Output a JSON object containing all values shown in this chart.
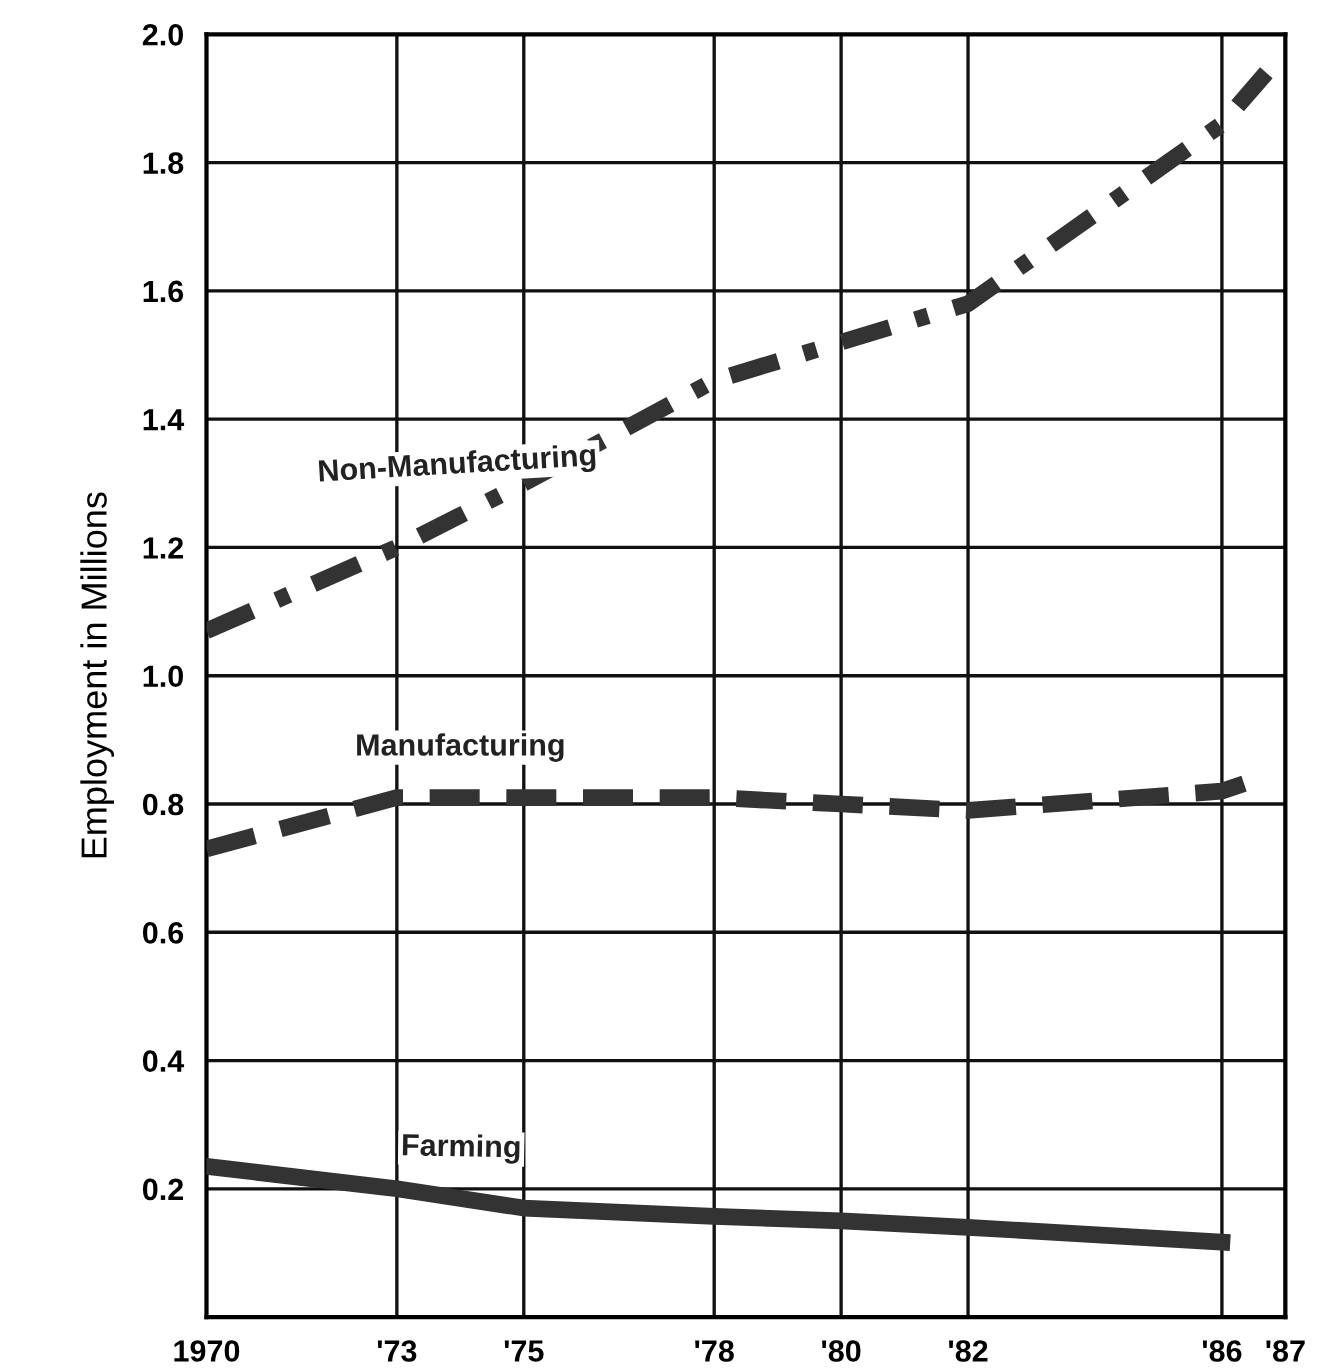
{
  "chart_data": {
    "type": "line",
    "ylabel": "Employment in Millions",
    "xlim": [
      1970,
      1987
    ],
    "xticks": [
      {
        "value": 1970,
        "label": "1970"
      },
      {
        "value": 1973,
        "label": "'73"
      },
      {
        "value": 1975,
        "label": "'75"
      },
      {
        "value": 1978,
        "label": "'78"
      },
      {
        "value": 1980,
        "label": "'80"
      },
      {
        "value": 1982,
        "label": "'82"
      },
      {
        "value": 1986,
        "label": "'86"
      },
      {
        "value": 1987,
        "label": "'87"
      }
    ],
    "ylim": [
      0,
      2.0
    ],
    "yticks": [
      0.2,
      0.4,
      0.6,
      0.8,
      {
        "value": 1.0,
        "label": "1.0"
      },
      1.2,
      1.4,
      1.6,
      1.8,
      {
        "value": 2.0,
        "label": "2.0"
      }
    ],
    "grid": true,
    "legend": false,
    "marker": "none",
    "series": [
      {
        "name": "Non-Manufacturing",
        "color": "#333333",
        "line_style": "dashdot",
        "x": [
          1970,
          1973,
          1975,
          1978,
          1980,
          1982,
          1986,
          1986.7
        ],
        "values": [
          1.07,
          1.2,
          1.3,
          1.46,
          1.52,
          1.58,
          1.86,
          1.94
        ]
      },
      {
        "name": "Manufacturing",
        "color": "#333333",
        "line_style": "dashed",
        "x": [
          1970,
          1973,
          1975,
          1978,
          1980,
          1982,
          1986,
          1986.6
        ],
        "values": [
          0.73,
          0.81,
          0.81,
          0.81,
          0.8,
          0.79,
          0.82,
          0.84
        ]
      },
      {
        "name": "Farming",
        "color": "#333333",
        "line_style": "solid",
        "x": [
          1970,
          1973,
          1975,
          1978,
          1980,
          1982,
          1986
        ],
        "values": [
          0.235,
          0.2,
          0.17,
          0.157,
          0.15,
          0.14,
          0.117
        ]
      }
    ]
  }
}
